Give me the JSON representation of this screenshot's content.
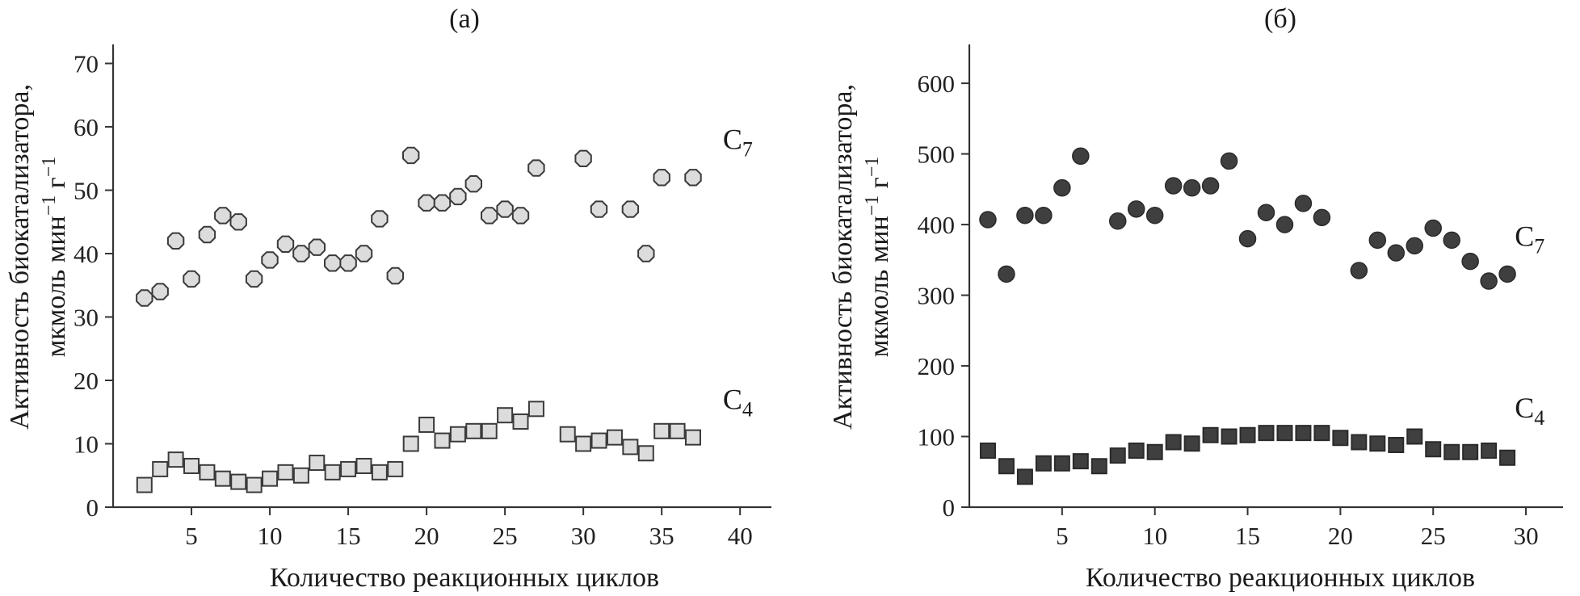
{
  "chart_data": [
    {
      "panel": "(а)",
      "type": "scatter",
      "title": "(а)",
      "xlabel": "Количество реакционных циклов",
      "ylabel_line1": "Активность биокатализатора,",
      "ylabel_line2_main": "мкмоль мин",
      "ylabel_line2_exp1": "−1",
      "ylabel_line2_mid": " г",
      "ylabel_line2_exp2": "−1",
      "xlim": [
        0,
        42
      ],
      "ylim": [
        0,
        73
      ],
      "xticks": [
        5,
        10,
        15,
        20,
        25,
        30,
        35,
        40
      ],
      "yticks": [
        0,
        10,
        20,
        30,
        40,
        50,
        60,
        70
      ],
      "series": [
        {
          "name": "C7",
          "label_main": "C",
          "label_sub": "7",
          "label_at": [
            38.9,
            56.5
          ],
          "marker": "octagon",
          "fill": "#dcdcdc",
          "stroke": "#3a3a3a",
          "x": [
            2,
            3,
            4,
            5,
            6,
            7,
            8,
            9,
            10,
            11,
            12,
            13,
            14,
            15,
            16,
            17,
            18,
            19,
            20,
            21,
            22,
            23,
            24,
            25,
            26,
            27,
            30,
            31,
            33,
            34,
            35,
            37
          ],
          "y": [
            33,
            34,
            42,
            36,
            43,
            46,
            45,
            36,
            39,
            41.5,
            40,
            41,
            38.5,
            38.5,
            40,
            45.5,
            36.5,
            55.5,
            48,
            48,
            49,
            51,
            46,
            47,
            46,
            53.5,
            55,
            47,
            47,
            40,
            52,
            52
          ]
        },
        {
          "name": "C4",
          "label_main": "C",
          "label_sub": "4",
          "label_at": [
            38.9,
            15.5
          ],
          "marker": "square",
          "fill": "#dcdcdc",
          "stroke": "#3a3a3a",
          "x": [
            2,
            3,
            4,
            5,
            6,
            7,
            8,
            9,
            10,
            11,
            12,
            13,
            14,
            15,
            16,
            17,
            18,
            19,
            20,
            21,
            22,
            23,
            24,
            25,
            26,
            27,
            29,
            30,
            31,
            32,
            33,
            34,
            35,
            36,
            37
          ],
          "y": [
            3.5,
            6,
            7.5,
            6.5,
            5.5,
            4.5,
            4,
            3.5,
            4.5,
            5.5,
            5,
            7,
            5.5,
            6,
            6.5,
            5.5,
            6,
            10,
            13,
            10.5,
            11.5,
            12,
            12,
            14.5,
            13.5,
            15.5,
            11.5,
            10,
            10.5,
            11,
            9.5,
            8.5,
            12,
            12,
            11
          ]
        }
      ]
    },
    {
      "panel": "(б)",
      "type": "scatter",
      "title": "(б)",
      "xlabel": "Количество реакционных циклов",
      "ylabel_line1": "Активность биокатализатора,",
      "ylabel_line2_main": "мкмоль мин",
      "ylabel_line2_exp1": "−1",
      "ylabel_line2_mid": " г",
      "ylabel_line2_exp2": "−1",
      "xlim": [
        0,
        32
      ],
      "ylim": [
        0,
        655
      ],
      "xticks": [
        5,
        10,
        15,
        20,
        25,
        30
      ],
      "yticks": [
        0,
        100,
        200,
        300,
        400,
        500,
        600
      ],
      "series": [
        {
          "name": "C7",
          "label_main": "C",
          "label_sub": "7",
          "label_at": [
            29.4,
            370
          ],
          "marker": "circle",
          "fill": "#3f3f3f",
          "stroke": "#2a2a2a",
          "x": [
            1,
            2,
            3,
            4,
            5,
            6,
            8,
            9,
            10,
            11,
            12,
            13,
            14,
            15,
            16,
            17,
            18,
            19,
            21,
            22,
            23,
            24,
            25,
            26,
            27,
            28,
            29
          ],
          "y": [
            407,
            330,
            413,
            413,
            452,
            497,
            405,
            422,
            413,
            455,
            452,
            455,
            490,
            380,
            417,
            400,
            430,
            410,
            335,
            378,
            360,
            370,
            395,
            378,
            348,
            320,
            330
          ]
        },
        {
          "name": "C4",
          "label_main": "C",
          "label_sub": "4",
          "label_at": [
            29.4,
            127
          ],
          "marker": "square",
          "fill": "#3f3f3f",
          "stroke": "#2a2a2a",
          "x": [
            1,
            2,
            3,
            4,
            5,
            6,
            7,
            8,
            9,
            10,
            11,
            12,
            13,
            14,
            15,
            16,
            17,
            18,
            19,
            20,
            21,
            22,
            23,
            24,
            25,
            26,
            27,
            28,
            29
          ],
          "y": [
            80,
            58,
            43,
            62,
            62,
            65,
            58,
            73,
            80,
            78,
            92,
            90,
            102,
            100,
            102,
            105,
            105,
            105,
            105,
            98,
            92,
            90,
            88,
            100,
            82,
            78,
            78,
            80,
            70
          ]
        }
      ]
    }
  ]
}
